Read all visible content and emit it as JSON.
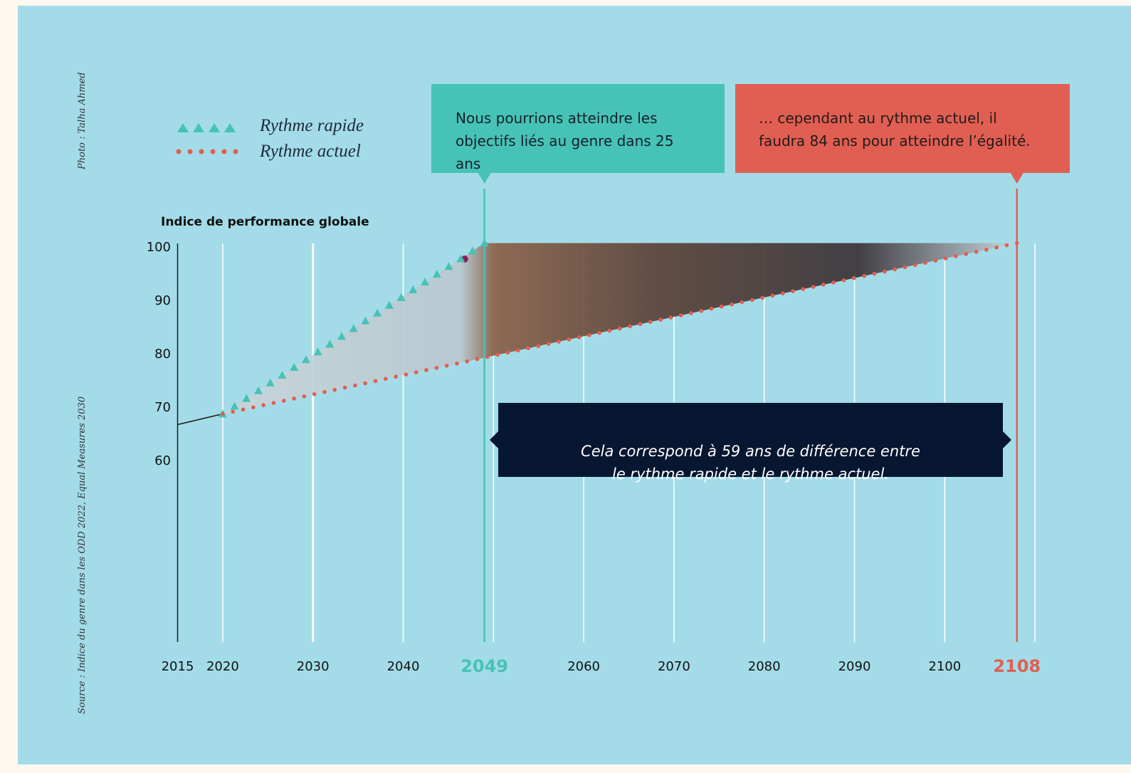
{
  "credits": {
    "photo": "Photo : Talha Ahmed",
    "source": "Source : Indice du genre dans les ODD 2022, Equal Measures 2030"
  },
  "legend": [
    {
      "label": "Rythme rapide",
      "marker": "triangle",
      "color": "#47c2b6"
    },
    {
      "label": "Rythme actuel",
      "marker": "dot",
      "color": "#e05f52"
    }
  ],
  "callouts": {
    "fast": "Nous pourrions atteindre les\nobjectifs liés au genre dans 25 ans",
    "current": "… cependant au rythme actuel, il\nfaudra 84 ans pour atteindre l’égalité.",
    "difference": "Cela correspond à 59 ans de différence entre\nle rythme rapide et le rythme actuel."
  },
  "colors": {
    "background": "#a3dce8",
    "fast": "#47c2b6",
    "current": "#e05f52",
    "dark": "#071631"
  },
  "chart_data": {
    "type": "line",
    "ylabel": "Indice de performance globale",
    "x_ticks": [
      "2015",
      "2020",
      "2030",
      "2040",
      "2049",
      "2060",
      "2070",
      "2080",
      "2090",
      "2100",
      "2108"
    ],
    "highlighted_ticks": [
      "2049",
      "2108"
    ],
    "y_ticks": [
      "100",
      "90",
      "80",
      "70",
      "60"
    ],
    "xlim": [
      2015,
      2110
    ],
    "ylim": [
      60,
      100
    ],
    "series": [
      {
        "name": "Rythme rapide",
        "marker": "triangle",
        "x": [
          2020,
          2049
        ],
        "y": [
          69,
          101
        ]
      },
      {
        "name": "Rythme actuel",
        "marker": "dot",
        "x": [
          2020,
          2108
        ],
        "y": [
          69,
          101
        ]
      },
      {
        "name": "",
        "marker": "none",
        "x": [
          2015,
          2020
        ],
        "y": [
          67,
          69
        ]
      }
    ],
    "markers": [
      {
        "x": 2049,
        "label": "2049",
        "color": "#47c2b6"
      },
      {
        "x": 2108,
        "label": "2108",
        "color": "#e05f52"
      }
    ]
  }
}
